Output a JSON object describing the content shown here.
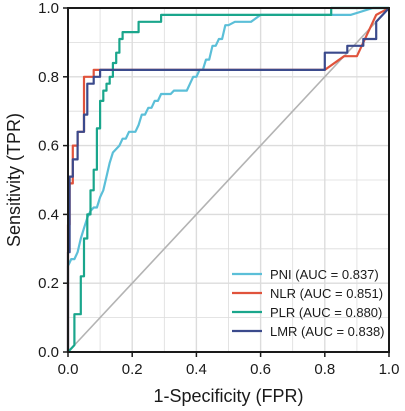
{
  "chart_data": {
    "type": "line",
    "title": "",
    "xlabel": "1-Specificity (FPR)",
    "ylabel": "Sensitivity (TPR)",
    "xlim": [
      0,
      1
    ],
    "ylim": [
      0,
      1
    ],
    "xticks": [
      "0.0",
      "0.2",
      "0.4",
      "0.6",
      "0.8",
      "1.0"
    ],
    "yticks": [
      "0.0",
      "0.2",
      "0.4",
      "0.6",
      "0.8",
      "1.0"
    ],
    "grid": true,
    "legend_position": "bottom-right",
    "reference_line": {
      "x": [
        0,
        1
      ],
      "y": [
        0,
        1
      ],
      "color": "#b3b3b3"
    },
    "series": [
      {
        "name": "PNI (AUC = 0.837)",
        "color": "#5bbfd8",
        "x": [
          0,
          0,
          0.01,
          0.02,
          0.03,
          0.04,
          0.05,
          0.06,
          0.07,
          0.08,
          0.09,
          0.1,
          0.11,
          0.12,
          0.13,
          0.14,
          0.15,
          0.16,
          0.17,
          0.18,
          0.19,
          0.2,
          0.21,
          0.22,
          0.23,
          0.24,
          0.25,
          0.26,
          0.27,
          0.28,
          0.29,
          0.3,
          0.31,
          0.32,
          0.33,
          0.34,
          0.35,
          0.36,
          0.37,
          0.38,
          0.39,
          0.4,
          0.41,
          0.42,
          0.43,
          0.44,
          0.45,
          0.46,
          0.47,
          0.48,
          0.49,
          0.5,
          0.52,
          0.54,
          0.57,
          0.6,
          0.64,
          0.68,
          0.72,
          0.8,
          0.88,
          0.95,
          1.0
        ],
        "y": [
          0,
          0.25,
          0.27,
          0.27,
          0.29,
          0.33,
          0.36,
          0.39,
          0.41,
          0.42,
          0.42,
          0.45,
          0.47,
          0.51,
          0.55,
          0.58,
          0.59,
          0.6,
          0.62,
          0.62,
          0.64,
          0.64,
          0.64,
          0.66,
          0.69,
          0.69,
          0.71,
          0.71,
          0.73,
          0.73,
          0.75,
          0.75,
          0.75,
          0.75,
          0.76,
          0.76,
          0.76,
          0.76,
          0.76,
          0.78,
          0.8,
          0.8,
          0.82,
          0.82,
          0.85,
          0.85,
          0.89,
          0.89,
          0.91,
          0.91,
          0.95,
          0.95,
          0.96,
          0.96,
          0.96,
          0.98,
          0.98,
          0.98,
          0.98,
          0.98,
          0.98,
          1.0,
          1.0
        ]
      },
      {
        "name": "NLR (AUC = 0.851)",
        "color": "#e0533c",
        "x": [
          0,
          0,
          0.005,
          0.005,
          0.015,
          0.015,
          0.03,
          0.03,
          0.05,
          0.05,
          0.08,
          0.08,
          0.2,
          0.5,
          0.8,
          0.86,
          0.9,
          0.96,
          1.0
        ],
        "y": [
          0,
          0.37,
          0.37,
          0.49,
          0.49,
          0.6,
          0.6,
          0.64,
          0.64,
          0.8,
          0.8,
          0.82,
          0.82,
          0.82,
          0.82,
          0.86,
          0.86,
          0.98,
          1.0
        ]
      },
      {
        "name": "PLR (AUC = 0.880)",
        "color": "#1aa68c",
        "x": [
          0,
          0.02,
          0.02,
          0.04,
          0.04,
          0.05,
          0.05,
          0.06,
          0.06,
          0.07,
          0.07,
          0.08,
          0.08,
          0.09,
          0.09,
          0.1,
          0.1,
          0.11,
          0.11,
          0.12,
          0.12,
          0.13,
          0.13,
          0.14,
          0.14,
          0.15,
          0.15,
          0.16,
          0.16,
          0.17,
          0.17,
          0.18,
          0.18,
          0.22,
          0.22,
          0.29,
          0.29,
          0.41,
          0.41,
          0.55,
          0.55,
          0.82,
          0.82,
          0.98,
          1.0
        ],
        "y": [
          0,
          0.02,
          0.11,
          0.11,
          0.22,
          0.22,
          0.33,
          0.33,
          0.4,
          0.4,
          0.47,
          0.47,
          0.53,
          0.53,
          0.65,
          0.65,
          0.73,
          0.73,
          0.76,
          0.76,
          0.78,
          0.78,
          0.8,
          0.8,
          0.84,
          0.84,
          0.87,
          0.87,
          0.91,
          0.91,
          0.93,
          0.93,
          0.93,
          0.93,
          0.96,
          0.96,
          0.98,
          0.98,
          0.98,
          0.98,
          0.98,
          0.98,
          1.0,
          1.0,
          1.0
        ]
      },
      {
        "name": "LMR (AUC = 0.838)",
        "color": "#3b4a8c",
        "x": [
          0,
          0,
          0.005,
          0.005,
          0.015,
          0.015,
          0.03,
          0.03,
          0.05,
          0.05,
          0.06,
          0.06,
          0.08,
          0.08,
          0.1,
          0.1,
          0.2,
          0.3,
          0.4,
          0.5,
          0.6,
          0.7,
          0.8,
          0.8,
          0.87,
          0.87,
          0.92,
          0.92,
          0.96,
          0.96,
          1.0
        ],
        "y": [
          0,
          0.29,
          0.29,
          0.51,
          0.51,
          0.56,
          0.56,
          0.64,
          0.64,
          0.69,
          0.69,
          0.78,
          0.78,
          0.8,
          0.8,
          0.82,
          0.82,
          0.82,
          0.82,
          0.82,
          0.82,
          0.82,
          0.82,
          0.87,
          0.87,
          0.89,
          0.89,
          0.91,
          0.91,
          0.96,
          1.0
        ]
      }
    ]
  }
}
